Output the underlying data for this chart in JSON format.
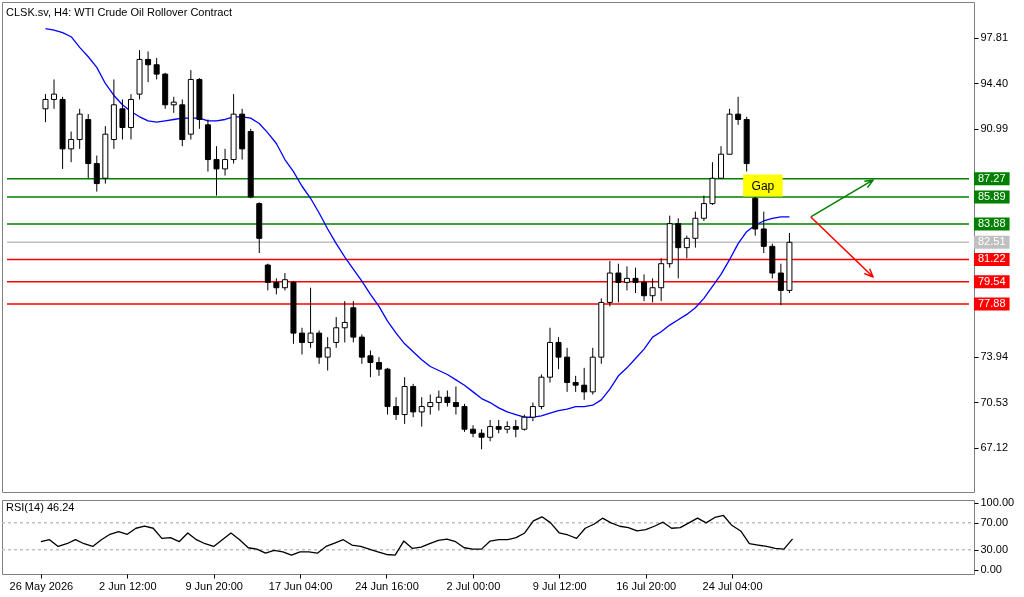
{
  "chart_data": [
    {
      "type": "candlestick",
      "title": "CLSK.sv, H4:  WTI Crude Oil Rollover Contract",
      "categories": [
        null,
        null,
        null,
        null,
        null,
        null,
        null,
        null,
        null,
        null,
        null,
        null,
        null,
        null,
        null,
        null,
        null,
        null,
        null,
        null,
        null,
        null,
        null,
        null,
        null,
        null,
        null,
        null,
        null,
        null,
        null,
        null,
        null,
        null,
        null,
        null,
        null,
        null,
        null,
        null,
        null,
        null,
        null,
        null,
        null,
        null,
        null,
        null,
        null,
        null,
        null,
        null,
        null,
        null,
        null,
        null,
        null,
        null,
        null,
        null,
        null,
        null,
        null,
        null,
        null,
        null,
        null,
        null,
        null,
        null,
        null,
        null,
        null,
        null,
        null,
        null,
        null,
        null,
        null,
        null,
        null,
        null,
        null,
        null,
        null,
        null,
        null,
        null
      ],
      "ohlc": [
        [
          92.5,
          93.6,
          91.5,
          93.2
        ],
        [
          93.2,
          94.7,
          92.5,
          93.6
        ],
        [
          93.2,
          93.4,
          88.0,
          89.5
        ],
        [
          89.5,
          90.8,
          88.5,
          90.2
        ],
        [
          90.2,
          92.5,
          89.5,
          92.1
        ],
        [
          91.7,
          92.1,
          87.3,
          88.4
        ],
        [
          88.4,
          89.0,
          86.3,
          86.9
        ],
        [
          87.3,
          91.2,
          86.9,
          90.6
        ],
        [
          90.2,
          94.7,
          89.5,
          92.8
        ],
        [
          92.5,
          93.2,
          90.2,
          91.1
        ],
        [
          91.1,
          93.6,
          90.2,
          93.2
        ],
        [
          93.6,
          96.9,
          93.2,
          96.2
        ],
        [
          96.2,
          96.8,
          94.5,
          95.8
        ],
        [
          95.8,
          96.3,
          94.7,
          95.1
        ],
        [
          95.1,
          95.2,
          92.5,
          92.8
        ],
        [
          92.8,
          93.4,
          92.2,
          93.0
        ],
        [
          92.8,
          93.2,
          89.7,
          90.2
        ],
        [
          90.6,
          95.4,
          90.2,
          94.7
        ],
        [
          94.7,
          94.8,
          91.0,
          91.7
        ],
        [
          91.3,
          91.7,
          87.8,
          88.7
        ],
        [
          88.7,
          89.7,
          86.0,
          88.0
        ],
        [
          88.0,
          89.5,
          87.5,
          88.7
        ],
        [
          88.7,
          93.6,
          88.4,
          92.1
        ],
        [
          92.1,
          92.5,
          88.7,
          89.5
        ],
        [
          90.8,
          91.0,
          85.8,
          85.9
        ],
        [
          85.4,
          85.5,
          81.7,
          82.8
        ],
        [
          80.8,
          80.9,
          78.9,
          79.5
        ],
        [
          79.5,
          79.8,
          78.6,
          79.1
        ],
        [
          79.1,
          80.2,
          78.9,
          79.7
        ],
        [
          79.5,
          79.6,
          74.9,
          75.7
        ],
        [
          75.7,
          76.1,
          74.1,
          75.0
        ],
        [
          75.0,
          79.1,
          74.6,
          75.7
        ],
        [
          75.7,
          75.9,
          73.4,
          73.9
        ],
        [
          73.9,
          75.4,
          72.9,
          74.6
        ],
        [
          75.0,
          76.9,
          74.6,
          76.1
        ],
        [
          76.1,
          78.1,
          75.0,
          76.5
        ],
        [
          77.6,
          78.1,
          75.0,
          75.4
        ],
        [
          75.4,
          75.6,
          73.4,
          73.9
        ],
        [
          74.0,
          74.4,
          72.4,
          73.5
        ],
        [
          73.5,
          73.9,
          72.5,
          73.0
        ],
        [
          73.0,
          73.1,
          69.6,
          70.2
        ],
        [
          70.2,
          70.9,
          69.2,
          69.6
        ],
        [
          69.6,
          72.4,
          68.9,
          71.7
        ],
        [
          71.7,
          71.9,
          69.4,
          69.8
        ],
        [
          69.8,
          70.9,
          68.7,
          70.2
        ],
        [
          70.2,
          71.1,
          69.6,
          70.5
        ],
        [
          70.5,
          71.4,
          69.9,
          70.9
        ],
        [
          70.9,
          71.4,
          70.2,
          70.5
        ],
        [
          70.5,
          71.7,
          69.6,
          70.2
        ],
        [
          70.2,
          70.4,
          68.3,
          68.5
        ],
        [
          68.5,
          68.8,
          67.9,
          68.2
        ],
        [
          68.2,
          68.5,
          67.0,
          67.9
        ],
        [
          67.9,
          69.2,
          67.6,
          68.7
        ],
        [
          68.7,
          69.2,
          68.2,
          68.5
        ],
        [
          68.5,
          69.1,
          68.2,
          68.7
        ],
        [
          68.7,
          69.2,
          67.9,
          68.5
        ],
        [
          68.5,
          69.6,
          68.4,
          69.4
        ],
        [
          69.4,
          70.5,
          69.1,
          70.2
        ],
        [
          70.2,
          72.6,
          70.0,
          72.4
        ],
        [
          72.4,
          76.1,
          72.0,
          75.0
        ],
        [
          75.0,
          75.4,
          73.0,
          73.9
        ],
        [
          73.9,
          74.6,
          71.3,
          72.0
        ],
        [
          72.0,
          72.5,
          71.3,
          71.8
        ],
        [
          71.8,
          73.1,
          70.7,
          71.3
        ],
        [
          71.3,
          74.6,
          71.1,
          73.9
        ],
        [
          73.9,
          78.3,
          73.4,
          78.0
        ],
        [
          78.0,
          81.1,
          77.7,
          80.2
        ],
        [
          80.2,
          80.9,
          78.0,
          79.5
        ],
        [
          79.5,
          80.7,
          78.9,
          79.8
        ],
        [
          79.8,
          80.6,
          78.7,
          79.5
        ],
        [
          79.5,
          80.1,
          78.1,
          78.5
        ],
        [
          78.5,
          79.8,
          78.0,
          79.1
        ],
        [
          79.1,
          81.3,
          78.1,
          80.9
        ],
        [
          80.9,
          84.5,
          80.6,
          83.9
        ],
        [
          83.9,
          84.3,
          79.8,
          82.1
        ],
        [
          82.1,
          83.0,
          81.3,
          82.8
        ],
        [
          82.8,
          84.8,
          82.1,
          84.3
        ],
        [
          84.3,
          86.0,
          84.1,
          85.4
        ],
        [
          85.4,
          88.5,
          85.3,
          87.3
        ],
        [
          87.3,
          89.7,
          87.3,
          89.1
        ],
        [
          89.1,
          92.5,
          89.1,
          92.1
        ],
        [
          92.1,
          93.4,
          91.3,
          91.7
        ],
        [
          91.7,
          91.9,
          87.8,
          88.4
        ],
        [
          85.8,
          85.9,
          83.0,
          83.5
        ],
        [
          83.5,
          84.8,
          81.7,
          82.2
        ],
        [
          82.2,
          82.4,
          79.8,
          80.2
        ],
        [
          80.2,
          80.9,
          77.8,
          78.9
        ],
        [
          78.9,
          83.2,
          78.7,
          82.5
        ]
      ],
      "series": [
        {
          "type": "line",
          "color": "#0000ff",
          "values": [
            98.5,
            98.4,
            98.2,
            97.9,
            97.1,
            96.4,
            95.6,
            94.4,
            93.5,
            92.8,
            92.3,
            91.9,
            91.6,
            91.5,
            91.6,
            91.7,
            91.8,
            91.8,
            91.8,
            91.6,
            91.6,
            91.7,
            91.9,
            91.9,
            91.8,
            91.4,
            90.7,
            89.9,
            88.7,
            87.8,
            86.7,
            85.8,
            84.7,
            83.5,
            82.4,
            81.4,
            80.5,
            79.6,
            78.6,
            77.7,
            76.6,
            75.7,
            74.9,
            74.3,
            73.7,
            73.2,
            72.9,
            72.6,
            72.2,
            71.8,
            71.3,
            70.8,
            70.5,
            70.1,
            69.8,
            69.6,
            69.4,
            69.4,
            69.5,
            69.7,
            69.9,
            70.0,
            70.2,
            70.2,
            70.3,
            70.7,
            71.5,
            72.5,
            73.1,
            73.8,
            74.5,
            75.4,
            75.8,
            76.3,
            76.7,
            77.1,
            77.6,
            78.3,
            79.2,
            80.1,
            81.2,
            82.4,
            83.3,
            83.8,
            84.1,
            84.3,
            84.4,
            84.4
          ]
        }
      ],
      "ylim": [
        63.8,
        100.5
      ],
      "yticks": [
        97.81,
        {
          "value": 94.4,
          "label": "94.40"
        },
        90.99,
        73.94,
        70.53,
        67.12
      ],
      "tick_labels": "y",
      "ref_lines": [
        {
          "axis": "y",
          "value": 87.27,
          "label": "87.27",
          "color": "#008000"
        },
        {
          "axis": "y",
          "value": 85.89,
          "label": "85.89",
          "color": "#008000"
        },
        {
          "axis": "y",
          "value": 83.88,
          "label": "83.88",
          "color": "#008000"
        },
        {
          "axis": "y",
          "value": 82.51,
          "label": "82.51",
          "color": "#c0c0c0"
        },
        {
          "axis": "y",
          "value": 81.22,
          "label": "81.22",
          "color": "#ff0000"
        },
        {
          "axis": "y",
          "value": 79.54,
          "label": "79.54",
          "color": "#ff0000"
        },
        {
          "axis": "y",
          "value": 77.88,
          "label": "77.88",
          "color": "#ff0000"
        }
      ],
      "annotations": [
        "Gap"
      ]
    },
    {
      "type": "line",
      "title": "RSI(14) 46.24",
      "categories": [
        "26 May 2026",
        null,
        null,
        null,
        null,
        null,
        null,
        null,
        null,
        null,
        "2 Jun 12:00",
        null,
        null,
        null,
        null,
        null,
        null,
        null,
        null,
        null,
        "9 Jun 20:00",
        null,
        null,
        null,
        null,
        null,
        null,
        null,
        null,
        null,
        "17 Jun 04:00",
        null,
        null,
        null,
        null,
        null,
        null,
        null,
        null,
        null,
        "24 Jun 16:00",
        null,
        null,
        null,
        null,
        null,
        null,
        null,
        null,
        null,
        "2 Jul 00:00",
        null,
        null,
        null,
        null,
        null,
        null,
        null,
        null,
        null,
        "9 Jul 12:00",
        null,
        null,
        null,
        null,
        null,
        null,
        null,
        null,
        null,
        "16 Jul 20:00",
        null,
        null,
        null,
        null,
        null,
        null,
        null,
        null,
        null,
        "24 Jul 04:00",
        null,
        null,
        null,
        null,
        null,
        null,
        null
      ],
      "series": [
        {
          "color": "#000000",
          "values": [
            42,
            45,
            35,
            39,
            45,
            39,
            35,
            45,
            53,
            57,
            53,
            62,
            65,
            62,
            47,
            48,
            42,
            55,
            45,
            39,
            35,
            45,
            55,
            45,
            33,
            31,
            25,
            29,
            27,
            22,
            27,
            27,
            25,
            35,
            40,
            45,
            37,
            35,
            31,
            27,
            23,
            22,
            43,
            32,
            34,
            39,
            44,
            46,
            42,
            33,
            31,
            31,
            43,
            45,
            45,
            48,
            55,
            73,
            79,
            70,
            55,
            52,
            47,
            62,
            68,
            77,
            70,
            65,
            63,
            58,
            60,
            65,
            71,
            62,
            63,
            70,
            77,
            70,
            78,
            81,
            66,
            58,
            39,
            37,
            35,
            32,
            31,
            46.24
          ]
        }
      ],
      "ylim": [
        -6,
        104
      ],
      "yticks": [
        {
          "value": 100,
          "label": "100.00"
        },
        {
          "value": 70,
          "label": "70.00"
        },
        {
          "value": 30,
          "label": "30.00"
        },
        {
          "value": 0,
          "label": "0.00"
        }
      ],
      "ref_lines": [
        {
          "axis": "y",
          "value": 70,
          "color": "#c0c0c0",
          "line_style": "dashed"
        },
        {
          "axis": "y",
          "value": 30,
          "color": "#c0c0c0",
          "line_style": "dashed"
        }
      ]
    }
  ]
}
